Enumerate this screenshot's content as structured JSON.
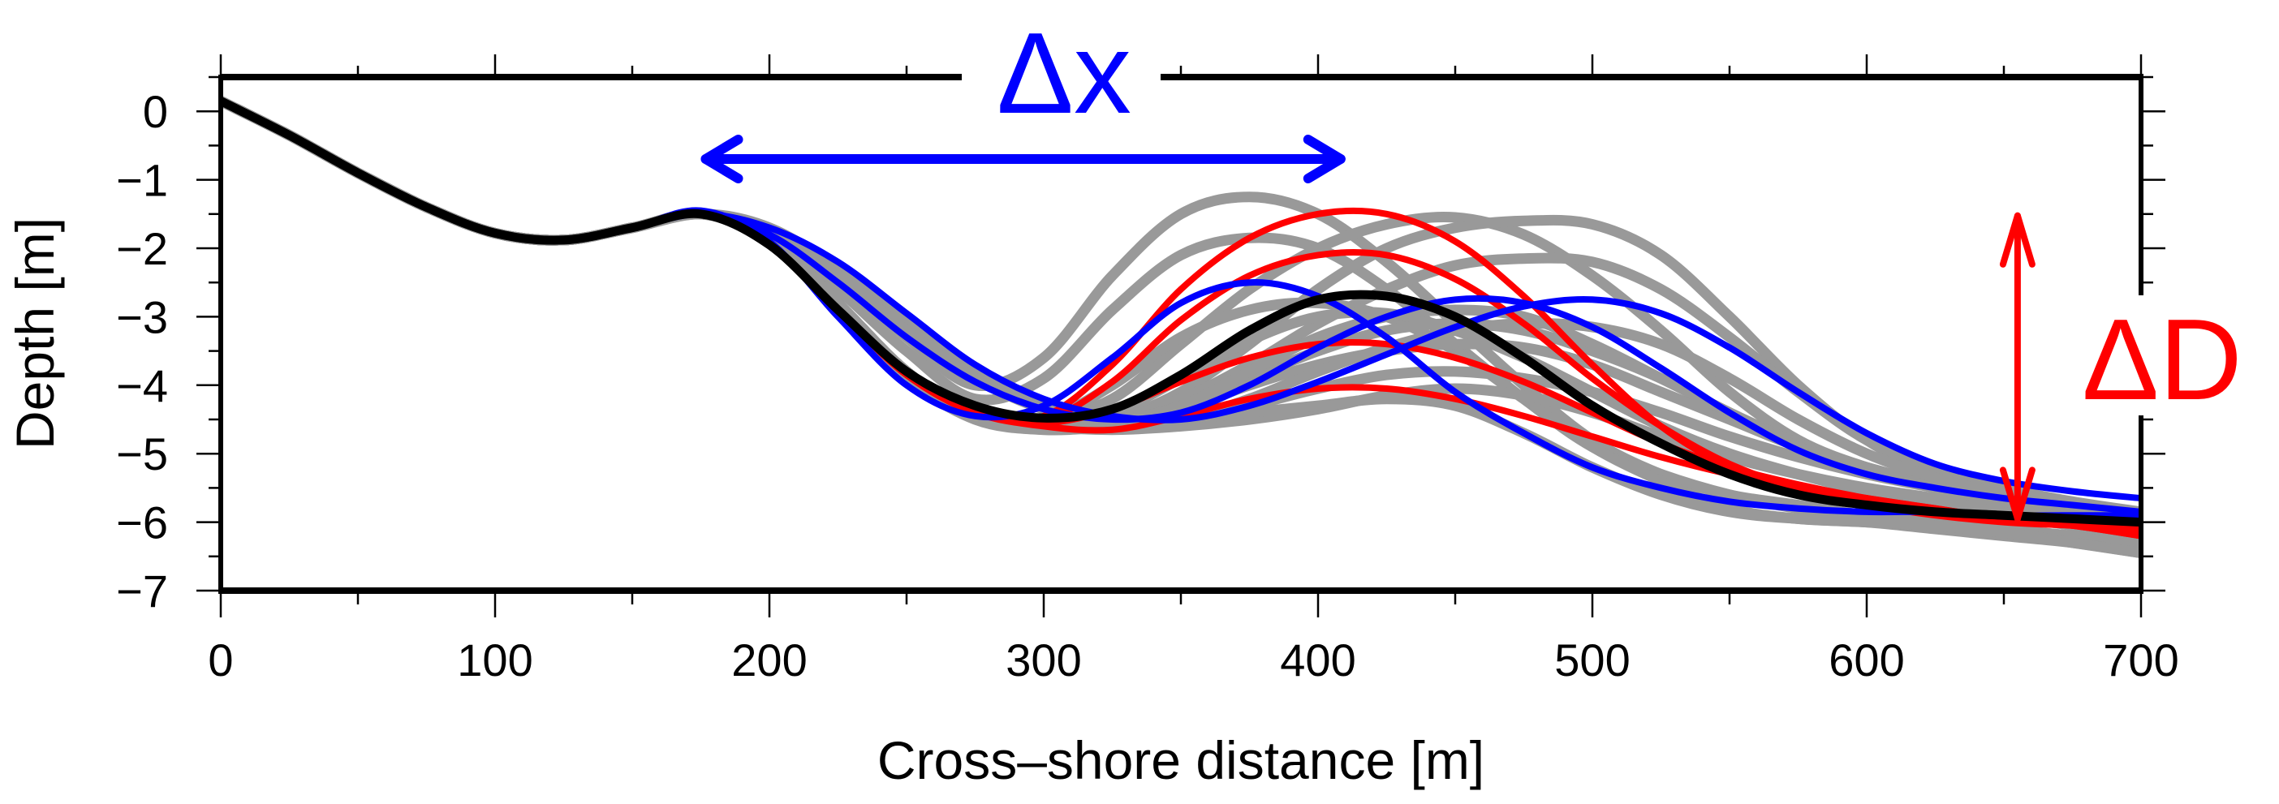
{
  "chart_data": {
    "type": "line",
    "title": "",
    "xlabel": "Cross–shore distance [m]",
    "ylabel": "Depth [m]",
    "xlim": [
      0,
      700
    ],
    "ylim": [
      -7,
      0.5
    ],
    "grid": false,
    "legend": "none",
    "x_ticks": [
      0,
      100,
      200,
      300,
      400,
      500,
      600,
      700
    ],
    "x_tick_labels": [
      "0",
      "100",
      "200",
      "300",
      "400",
      "500",
      "600",
      "700"
    ],
    "x_minor_ticks": [
      50,
      150,
      250,
      350,
      450,
      550,
      650
    ],
    "y_ticks": [
      0,
      -1,
      -2,
      -3,
      -4,
      -5,
      -6,
      -7
    ],
    "y_tick_labels": [
      "0",
      "−1",
      "−2",
      "−3",
      "−4",
      "−5",
      "−6",
      "−7"
    ],
    "y_minor_ticks": [
      0.5,
      -0.5,
      -1.5,
      -2.5,
      -3.5,
      -4.5,
      -5.5,
      -6.5
    ],
    "x": [
      0,
      25,
      50,
      75,
      100,
      125,
      150,
      175,
      200,
      225,
      250,
      275,
      300,
      325,
      350,
      375,
      400,
      425,
      450,
      475,
      500,
      525,
      550,
      575,
      600,
      625,
      650,
      675,
      700
    ],
    "colors": {
      "gray": "#999999",
      "red": "#ff0000",
      "blue": "#0000ff",
      "black": "#000000"
    },
    "series": [
      {
        "name": "gray-1",
        "color": "gray",
        "values": [
          0.15,
          -0.35,
          -0.9,
          -1.4,
          -1.78,
          -1.88,
          -1.7,
          -1.5,
          -1.75,
          -2.4,
          -3.3,
          -4.0,
          -3.6,
          -2.4,
          -1.5,
          -1.25,
          -1.5,
          -2.2,
          -3.1,
          -4.0,
          -4.8,
          -5.3,
          -5.6,
          -5.75,
          -5.9,
          -6.0,
          -6.1,
          -6.2,
          -6.3
        ]
      },
      {
        "name": "gray-2",
        "color": "gray",
        "values": [
          0.15,
          -0.35,
          -0.9,
          -1.4,
          -1.78,
          -1.88,
          -1.7,
          -1.5,
          -1.8,
          -2.6,
          -3.5,
          -4.2,
          -3.9,
          -2.9,
          -2.1,
          -1.85,
          -2.0,
          -2.6,
          -3.4,
          -4.2,
          -4.9,
          -5.3,
          -5.6,
          -5.8,
          -5.9,
          -6.0,
          -6.1,
          -6.2,
          -6.3
        ]
      },
      {
        "name": "gray-3",
        "color": "gray",
        "values": [
          0.15,
          -0.35,
          -0.9,
          -1.4,
          -1.78,
          -1.88,
          -1.7,
          -1.5,
          -1.85,
          -2.8,
          -3.8,
          -4.45,
          -4.5,
          -4.2,
          -3.4,
          -2.6,
          -2.0,
          -1.65,
          -1.55,
          -1.8,
          -2.4,
          -3.2,
          -4.1,
          -4.8,
          -5.2,
          -5.45,
          -5.6,
          -5.75,
          -5.9
        ]
      },
      {
        "name": "gray-4",
        "color": "gray",
        "values": [
          0.15,
          -0.35,
          -0.9,
          -1.4,
          -1.78,
          -1.88,
          -1.7,
          -1.5,
          -1.85,
          -2.8,
          -3.8,
          -4.45,
          -4.6,
          -4.5,
          -4.1,
          -3.4,
          -2.6,
          -2.0,
          -1.7,
          -1.6,
          -1.65,
          -2.1,
          -3.0,
          -4.0,
          -4.8,
          -5.3,
          -5.6,
          -5.8,
          -6.0
        ]
      },
      {
        "name": "gray-5",
        "color": "gray",
        "values": [
          0.15,
          -0.35,
          -0.9,
          -1.4,
          -1.78,
          -1.88,
          -1.7,
          -1.5,
          -1.85,
          -2.8,
          -3.8,
          -4.45,
          -4.6,
          -4.5,
          -4.2,
          -3.7,
          -3.1,
          -2.6,
          -2.25,
          -2.15,
          -2.2,
          -2.6,
          -3.3,
          -4.1,
          -4.8,
          -5.2,
          -5.5,
          -5.7,
          -5.85
        ]
      },
      {
        "name": "gray-6",
        "color": "gray",
        "values": [
          0.15,
          -0.35,
          -0.9,
          -1.4,
          -1.78,
          -1.88,
          -1.7,
          -1.5,
          -1.85,
          -2.8,
          -3.8,
          -4.4,
          -4.5,
          -4.0,
          -3.3,
          -2.9,
          -2.8,
          -3.0,
          -3.5,
          -4.2,
          -4.9,
          -5.4,
          -5.8,
          -5.95,
          -6.0,
          -6.1,
          -6.2,
          -6.3,
          -6.45
        ]
      },
      {
        "name": "gray-7",
        "color": "gray",
        "values": [
          0.15,
          -0.35,
          -0.9,
          -1.4,
          -1.78,
          -1.88,
          -1.7,
          -1.5,
          -1.85,
          -2.8,
          -3.8,
          -4.45,
          -4.55,
          -4.4,
          -3.9,
          -3.35,
          -3.0,
          -2.95,
          -3.2,
          -3.6,
          -4.1,
          -4.6,
          -5.0,
          -5.3,
          -5.55,
          -5.75,
          -5.9,
          -6.05,
          -6.2
        ]
      },
      {
        "name": "gray-8",
        "color": "gray",
        "values": [
          0.15,
          -0.35,
          -0.9,
          -1.4,
          -1.78,
          -1.88,
          -1.7,
          -1.5,
          -1.85,
          -2.8,
          -3.8,
          -4.45,
          -4.6,
          -4.55,
          -4.3,
          -3.9,
          -3.5,
          -3.2,
          -3.1,
          -3.2,
          -3.5,
          -3.9,
          -4.4,
          -4.85,
          -5.2,
          -5.45,
          -5.65,
          -5.8,
          -5.95
        ]
      },
      {
        "name": "gray-9",
        "color": "gray",
        "values": [
          0.15,
          -0.35,
          -0.9,
          -1.4,
          -1.78,
          -1.88,
          -1.7,
          -1.5,
          -1.85,
          -2.8,
          -3.8,
          -4.45,
          -4.6,
          -4.55,
          -4.35,
          -4.0,
          -3.7,
          -3.5,
          -3.4,
          -3.45,
          -3.7,
          -4.1,
          -4.5,
          -4.9,
          -5.2,
          -5.45,
          -5.65,
          -5.85,
          -6.0
        ]
      },
      {
        "name": "gray-10",
        "color": "gray",
        "values": [
          0.15,
          -0.35,
          -0.9,
          -1.4,
          -1.78,
          -1.88,
          -1.7,
          -1.5,
          -1.85,
          -2.8,
          -3.8,
          -4.45,
          -4.6,
          -4.6,
          -4.5,
          -4.3,
          -4.05,
          -3.85,
          -3.8,
          -3.9,
          -4.1,
          -4.4,
          -4.75,
          -5.05,
          -5.3,
          -5.5,
          -5.7,
          -5.85,
          -6.0
        ]
      },
      {
        "name": "gray-11",
        "color": "gray",
        "values": [
          0.15,
          -0.35,
          -0.9,
          -1.4,
          -1.78,
          -1.88,
          -1.7,
          -1.5,
          -1.85,
          -2.8,
          -3.8,
          -4.45,
          -4.6,
          -4.65,
          -4.6,
          -4.5,
          -4.35,
          -4.15,
          -4.05,
          -4.15,
          -4.4,
          -4.75,
          -5.05,
          -5.3,
          -5.5,
          -5.65,
          -5.8,
          -5.95,
          -6.1
        ]
      },
      {
        "name": "gray-12",
        "color": "gray",
        "values": [
          0.15,
          -0.35,
          -0.9,
          -1.4,
          -1.78,
          -1.88,
          -1.7,
          -1.5,
          -1.9,
          -2.9,
          -3.9,
          -4.5,
          -4.65,
          -4.6,
          -4.5,
          -4.4,
          -4.3,
          -4.2,
          -4.3,
          -4.7,
          -5.2,
          -5.6,
          -5.85,
          -5.95,
          -6.0,
          -6.05,
          -6.15,
          -6.3,
          -6.45
        ]
      },
      {
        "name": "gray-13",
        "color": "gray",
        "values": [
          0.15,
          -0.35,
          -0.9,
          -1.4,
          -1.78,
          -1.88,
          -1.7,
          -1.5,
          -1.7,
          -2.3,
          -3.1,
          -3.8,
          -4.3,
          -4.5,
          -4.3,
          -3.8,
          -3.3,
          -3.0,
          -2.9,
          -3.0,
          -3.4,
          -3.9,
          -4.4,
          -4.9,
          -5.25,
          -5.5,
          -5.7,
          -5.85,
          -6.0
        ]
      },
      {
        "name": "gray-14",
        "color": "gray",
        "values": [
          0.15,
          -0.35,
          -0.9,
          -1.4,
          -1.78,
          -1.88,
          -1.7,
          -1.5,
          -1.75,
          -2.4,
          -3.2,
          -3.9,
          -4.35,
          -4.55,
          -4.5,
          -4.2,
          -3.8,
          -3.45,
          -3.2,
          -3.1,
          -3.15,
          -3.4,
          -3.9,
          -4.5,
          -5.0,
          -5.35,
          -5.6,
          -5.8,
          -5.95
        ]
      },
      {
        "name": "red-1",
        "color": "red",
        "values": [
          0.15,
          -0.35,
          -0.9,
          -1.4,
          -1.78,
          -1.88,
          -1.7,
          -1.5,
          -1.95,
          -2.9,
          -3.85,
          -4.35,
          -4.45,
          -3.7,
          -2.6,
          -1.85,
          -1.5,
          -1.5,
          -1.9,
          -2.7,
          -3.7,
          -4.6,
          -5.2,
          -5.55,
          -5.75,
          -5.9,
          -6.0,
          -6.05,
          -6.1
        ]
      },
      {
        "name": "red-2",
        "color": "red",
        "values": [
          0.15,
          -0.35,
          -0.9,
          -1.4,
          -1.78,
          -1.88,
          -1.7,
          -1.5,
          -1.95,
          -2.9,
          -3.85,
          -4.35,
          -4.5,
          -3.95,
          -3.05,
          -2.4,
          -2.1,
          -2.1,
          -2.45,
          -3.1,
          -3.9,
          -4.6,
          -5.15,
          -5.5,
          -5.7,
          -5.85,
          -5.95,
          -6.05,
          -6.15
        ]
      },
      {
        "name": "red-3",
        "color": "red",
        "values": [
          0.15,
          -0.35,
          -0.9,
          -1.4,
          -1.78,
          -1.88,
          -1.7,
          -1.5,
          -1.95,
          -2.9,
          -3.85,
          -4.4,
          -4.55,
          -4.35,
          -3.95,
          -3.6,
          -3.4,
          -3.4,
          -3.6,
          -3.95,
          -4.4,
          -4.85,
          -5.2,
          -5.45,
          -5.65,
          -5.8,
          -5.95,
          -6.05,
          -6.2
        ]
      },
      {
        "name": "red-4",
        "color": "red",
        "values": [
          0.15,
          -0.35,
          -0.9,
          -1.4,
          -1.78,
          -1.88,
          -1.7,
          -1.5,
          -1.95,
          -2.9,
          -3.85,
          -4.4,
          -4.6,
          -4.65,
          -4.45,
          -4.2,
          -4.05,
          -4.05,
          -4.2,
          -4.45,
          -4.75,
          -5.05,
          -5.3,
          -5.5,
          -5.65,
          -5.8,
          -5.95,
          -6.05,
          -6.2
        ]
      },
      {
        "name": "blue-1",
        "color": "blue",
        "values": [
          0.15,
          -0.35,
          -0.9,
          -1.4,
          -1.78,
          -1.88,
          -1.7,
          -1.45,
          -1.9,
          -3.0,
          -4.0,
          -4.45,
          -4.3,
          -3.6,
          -2.8,
          -2.5,
          -2.7,
          -3.3,
          -4.1,
          -4.7,
          -5.2,
          -5.5,
          -5.7,
          -5.8,
          -5.85,
          -5.85,
          -5.9,
          -5.9,
          -5.9
        ]
      },
      {
        "name": "blue-2",
        "color": "blue",
        "values": [
          0.15,
          -0.35,
          -0.9,
          -1.4,
          -1.78,
          -1.88,
          -1.7,
          -1.5,
          -1.8,
          -2.5,
          -3.3,
          -3.95,
          -4.35,
          -4.5,
          -4.4,
          -4.0,
          -3.45,
          -3.0,
          -2.75,
          -2.8,
          -3.15,
          -3.75,
          -4.4,
          -4.95,
          -5.3,
          -5.5,
          -5.65,
          -5.75,
          -5.85
        ]
      },
      {
        "name": "blue-3",
        "color": "blue",
        "values": [
          0.15,
          -0.35,
          -0.9,
          -1.4,
          -1.78,
          -1.88,
          -1.7,
          -1.5,
          -1.7,
          -2.2,
          -2.95,
          -3.7,
          -4.2,
          -4.45,
          -4.5,
          -4.3,
          -3.95,
          -3.55,
          -3.15,
          -2.85,
          -2.75,
          -2.95,
          -3.45,
          -4.1,
          -4.7,
          -5.15,
          -5.4,
          -5.55,
          -5.65
        ]
      },
      {
        "name": "black-mean",
        "color": "black",
        "values": [
          0.15,
          -0.35,
          -0.9,
          -1.4,
          -1.78,
          -1.88,
          -1.7,
          -1.5,
          -1.95,
          -2.9,
          -3.8,
          -4.3,
          -4.48,
          -4.35,
          -3.85,
          -3.2,
          -2.75,
          -2.7,
          -3.0,
          -3.6,
          -4.3,
          -4.85,
          -5.3,
          -5.6,
          -5.75,
          -5.85,
          -5.9,
          -5.95,
          -6.0
        ]
      }
    ],
    "annotations": {
      "dx_label": "Δx",
      "dx_arrow": {
        "x_from": 175,
        "x_to": 410,
        "depth": -0.75,
        "color": "#0000ff"
      },
      "dD_label": "ΔD",
      "dD_arrow": {
        "x": 655,
        "depth_from": -1.5,
        "depth_to": -5.95,
        "color": "#ff0000"
      }
    }
  }
}
